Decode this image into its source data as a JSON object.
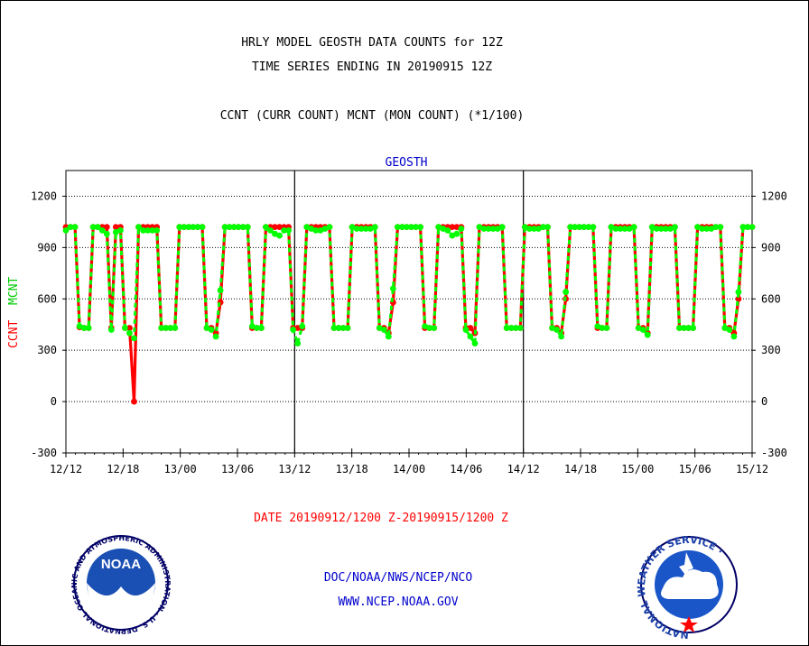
{
  "header": {
    "title_line1": "HRLY MODEL GEOSTH DATA COUNTS for 12Z",
    "title_line2": "TIME SERIES ENDING IN 20190915 12Z",
    "subtitle": "CCNT (CURR COUNT) MCNT (MON COUNT) (*1/100)"
  },
  "footer": {
    "date_range": "DATE 20190912/1200 Z-20190915/1200 Z",
    "org_line": "DOC/NOAA/NWS/NCEP/NCO",
    "url": "WWW.NCEP.NOAA.GOV"
  },
  "logos": {
    "noaa_text": "NOAA",
    "noaa_ring": "NATIONAL OCEANIC AND ATMOSPHERIC ADMINISTRATION · U.S. DEPARTMENT OF COMMERCE ·",
    "nws_ring": "NATIONAL WEATHER SERVICE ·"
  },
  "chart_data": {
    "type": "line",
    "title": "GEOSTH",
    "ylabel_left_parts": [
      "CCNT",
      "MCNT"
    ],
    "ylim": [
      -300,
      1350
    ],
    "yticks": [
      -300,
      0,
      300,
      600,
      900,
      1200
    ],
    "xticks": [
      "12/12",
      "12/18",
      "13/00",
      "13/06",
      "13/12",
      "13/18",
      "14/00",
      "14/06",
      "14/12",
      "14/18",
      "15/00",
      "15/06",
      "15/12"
    ],
    "grid": true,
    "x_hours_start": "12/12",
    "series": [
      {
        "name": "CCNT",
        "color": "#ff0000",
        "values": [
          1020,
          1020,
          1020,
          435,
          430,
          430,
          1020,
          1020,
          1020,
          1020,
          430,
          1020,
          1020,
          430,
          430,
          0,
          1020,
          1020,
          1020,
          1020,
          1020,
          430,
          430,
          430,
          430,
          1020,
          1020,
          1020,
          1020,
          1020,
          1020,
          430,
          430,
          400,
          580,
          1020,
          1020,
          1020,
          1020,
          1020,
          1020,
          430,
          430,
          430,
          1020,
          1020,
          1020,
          1020,
          1020,
          1020,
          430,
          430,
          430,
          1020,
          1020,
          1020,
          1020,
          1020,
          1020,
          430,
          430,
          430,
          430,
          1020,
          1020,
          1020,
          1020,
          1020,
          1020,
          430,
          430,
          400,
          580,
          1020,
          1020,
          1020,
          1020,
          1020,
          1020,
          430,
          430,
          430,
          1020,
          1020,
          1020,
          1020,
          1020,
          1020,
          430,
          430,
          400,
          1020,
          1020,
          1020,
          1020,
          1020,
          1020,
          430,
          430,
          430,
          430,
          1020,
          1020,
          1020,
          1020,
          1020,
          1020,
          430,
          430,
          400,
          600,
          1020,
          1020,
          1020,
          1020,
          1020,
          1020,
          430,
          430,
          430,
          1020,
          1020,
          1020,
          1020,
          1020,
          1020,
          430,
          430,
          400,
          1020,
          1020,
          1020,
          1020,
          1020,
          1020,
          430,
          430,
          430,
          430,
          1020,
          1020,
          1020,
          1020,
          1020,
          1020,
          430,
          430,
          400,
          600,
          1020,
          1020,
          1020
        ]
      },
      {
        "name": "MCNT",
        "color": "#00ff00",
        "values": [
          1000,
          1020,
          1020,
          440,
          430,
          430,
          1020,
          1020,
          1000,
          980,
          420,
          990,
          1000,
          430,
          400,
          370,
          1020,
          1000,
          1000,
          1000,
          1000,
          430,
          430,
          430,
          430,
          1020,
          1020,
          1020,
          1020,
          1020,
          1020,
          430,
          420,
          380,
          650,
          1020,
          1020,
          1020,
          1020,
          1020,
          1020,
          440,
          430,
          430,
          1020,
          1000,
          980,
          970,
          1000,
          1000,
          420,
          340,
          440,
          1020,
          1010,
          1000,
          1000,
          1010,
          1020,
          430,
          430,
          430,
          430,
          1020,
          1010,
          1010,
          1010,
          1010,
          1020,
          430,
          420,
          380,
          660,
          1020,
          1020,
          1020,
          1020,
          1020,
          1020,
          440,
          430,
          430,
          1020,
          1010,
          1000,
          970,
          980,
          1010,
          420,
          380,
          340,
          1020,
          1010,
          1010,
          1010,
          1010,
          1020,
          430,
          430,
          430,
          430,
          1020,
          1010,
          1010,
          1010,
          1020,
          1020,
          430,
          420,
          380,
          640,
          1020,
          1020,
          1020,
          1020,
          1020,
          1020,
          440,
          430,
          430,
          1020,
          1010,
          1010,
          1010,
          1010,
          1020,
          430,
          420,
          390,
          1020,
          1010,
          1010,
          1010,
          1010,
          1020,
          430,
          430,
          430,
          430,
          1020,
          1010,
          1010,
          1010,
          1020,
          1020,
          430,
          420,
          380,
          640,
          1020,
          1020,
          1020
        ]
      }
    ]
  }
}
